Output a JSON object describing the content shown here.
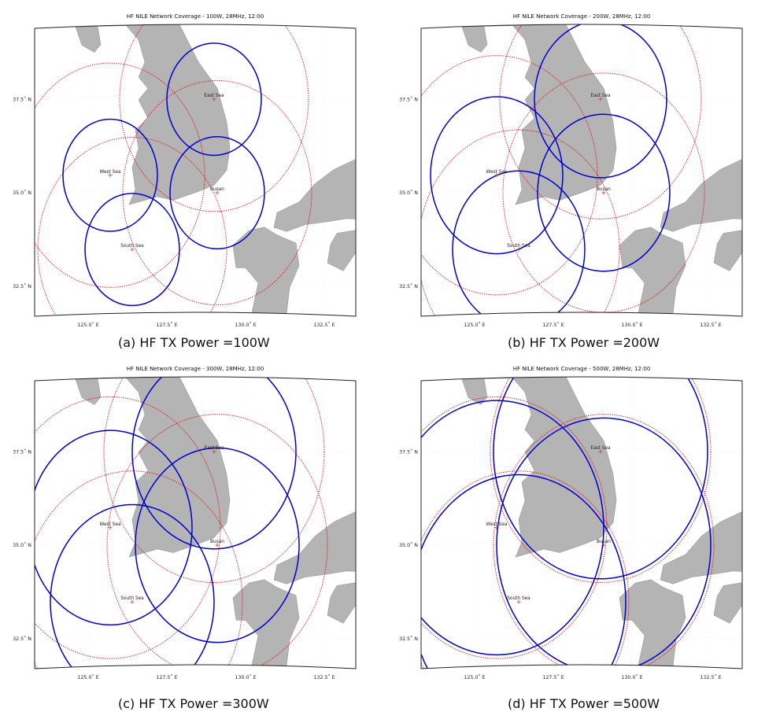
{
  "stations": [
    {
      "name": "East Sea",
      "lat": 37.4,
      "lon": 129.0
    },
    {
      "name": "West Sea",
      "lat": 35.4,
      "lon": 125.7
    },
    {
      "name": "Busan",
      "lat": 34.9,
      "lon": 129.1
    },
    {
      "name": "South Sea",
      "lat": 33.4,
      "lon": 126.4
    }
  ],
  "axes": {
    "x_ticks": [
      {
        "value": 125.0,
        "label": "125.0˚ E"
      },
      {
        "value": 127.5,
        "label": "127.5˚ E"
      },
      {
        "value": 130.0,
        "label": "130.0˚ E"
      },
      {
        "value": 132.5,
        "label": "132.5˚ E"
      }
    ],
    "y_ticks": [
      {
        "value": 37.5,
        "label": "37.5˚ N"
      },
      {
        "value": 35.0,
        "label": "35.0˚ N"
      },
      {
        "value": 32.5,
        "label": "32.5˚ N"
      }
    ]
  },
  "panels": [
    {
      "title": "HF NILE Network Coverage - 100W, 28MHz, 12:00",
      "caption": "(a) HF TX Power =100W",
      "blue_radius_deg": 1.5,
      "red_radius_deg": 3.0,
      "colors": {
        "blue": "#0000cc",
        "red": "#dd0000"
      }
    },
    {
      "title": "HF NILE Network Coverage - 200W, 28MHz, 12:00",
      "caption": "(b) HF TX Power =200W",
      "blue_radius_deg": 2.1,
      "red_radius_deg": 3.2,
      "colors": {
        "blue": "#0000cc",
        "red": "#dd0000"
      }
    },
    {
      "title": "HF NILE Network Coverage - 300W, 28MHz, 12:00",
      "caption": "(c) HF TX Power =300W",
      "blue_radius_deg": 2.6,
      "red_radius_deg": 3.5,
      "colors": {
        "blue": "#0000cc",
        "red": "#dd0000"
      }
    },
    {
      "title": "HF NILE Network Coverage - 500W, 28MHz, 12:00",
      "caption": "(d) HF TX Power =500W",
      "blue_radius_deg": 3.4,
      "red_radius_deg": 3.5,
      "colors": {
        "blue": "#0000cc",
        "red": "#dd0000"
      }
    }
  ],
  "land_color": "#b4b4b4",
  "map_extent": {
    "lon_min": 123.3,
    "lon_max": 133.5,
    "lat_min": 31.7,
    "lat_max": 39.4
  }
}
